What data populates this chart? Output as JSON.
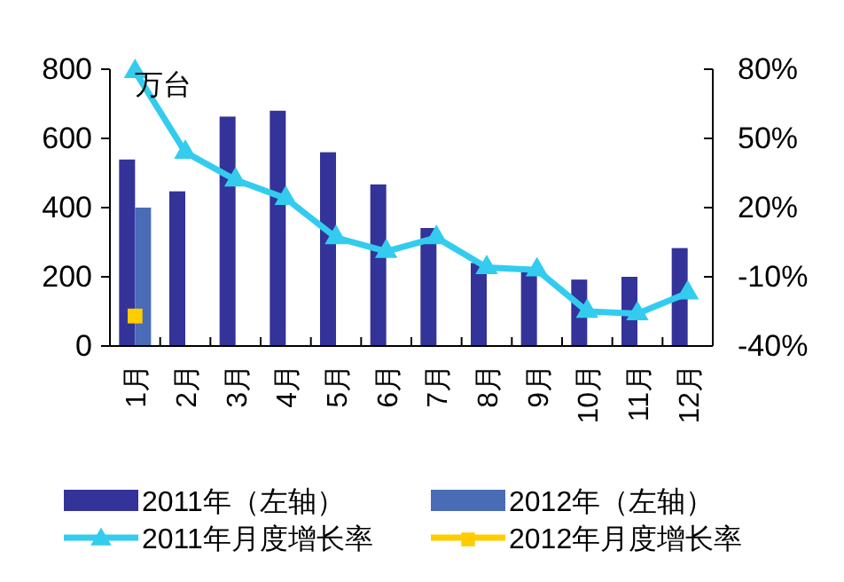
{
  "chart_data": {
    "type": "bar",
    "ylabel": "万台",
    "categories": [
      "1月",
      "2月",
      "3月",
      "4月",
      "5月",
      "6月",
      "7月",
      "8月",
      "9月",
      "10月",
      "11月",
      "12月"
    ],
    "series": [
      {
        "name": "2011年（左轴）",
        "color": "#333399",
        "values": [
          539,
          447,
          663,
          680,
          560,
          467,
          341,
          240,
          228,
          192,
          200,
          283
        ]
      },
      {
        "name": "2012年（左轴）",
        "color": "#4a6bb5",
        "values": [
          400,
          null,
          null,
          null,
          null,
          null,
          null,
          null,
          null,
          null,
          null,
          null
        ]
      },
      {
        "name": "2011年月度增长率",
        "type": "line",
        "axis": "y2",
        "color": "#33ccee",
        "marker": "triangle",
        "values": [
          79,
          44,
          32,
          24,
          7,
          1,
          7,
          -6,
          -7,
          -25,
          -26,
          -17
        ]
      },
      {
        "name": "2012年月度增长率",
        "type": "line",
        "axis": "y2",
        "color": "#ffcc00",
        "marker": "square",
        "values": [
          -27,
          null,
          null,
          null,
          null,
          null,
          null,
          null,
          null,
          null,
          null,
          null
        ]
      }
    ],
    "ylim": [
      0,
      800
    ],
    "yticks": [
      0,
      200,
      400,
      600,
      800
    ],
    "y2lim": [
      -40,
      80
    ],
    "y2ticks": [
      {
        "value": -40,
        "label": "-40%"
      },
      {
        "value": -10,
        "label": "-10%"
      },
      {
        "value": 20,
        "label": "20%"
      },
      {
        "value": 50,
        "label": "50%"
      },
      {
        "value": 80,
        "label": "80%"
      }
    ],
    "grid": false,
    "legend": "bottom"
  }
}
